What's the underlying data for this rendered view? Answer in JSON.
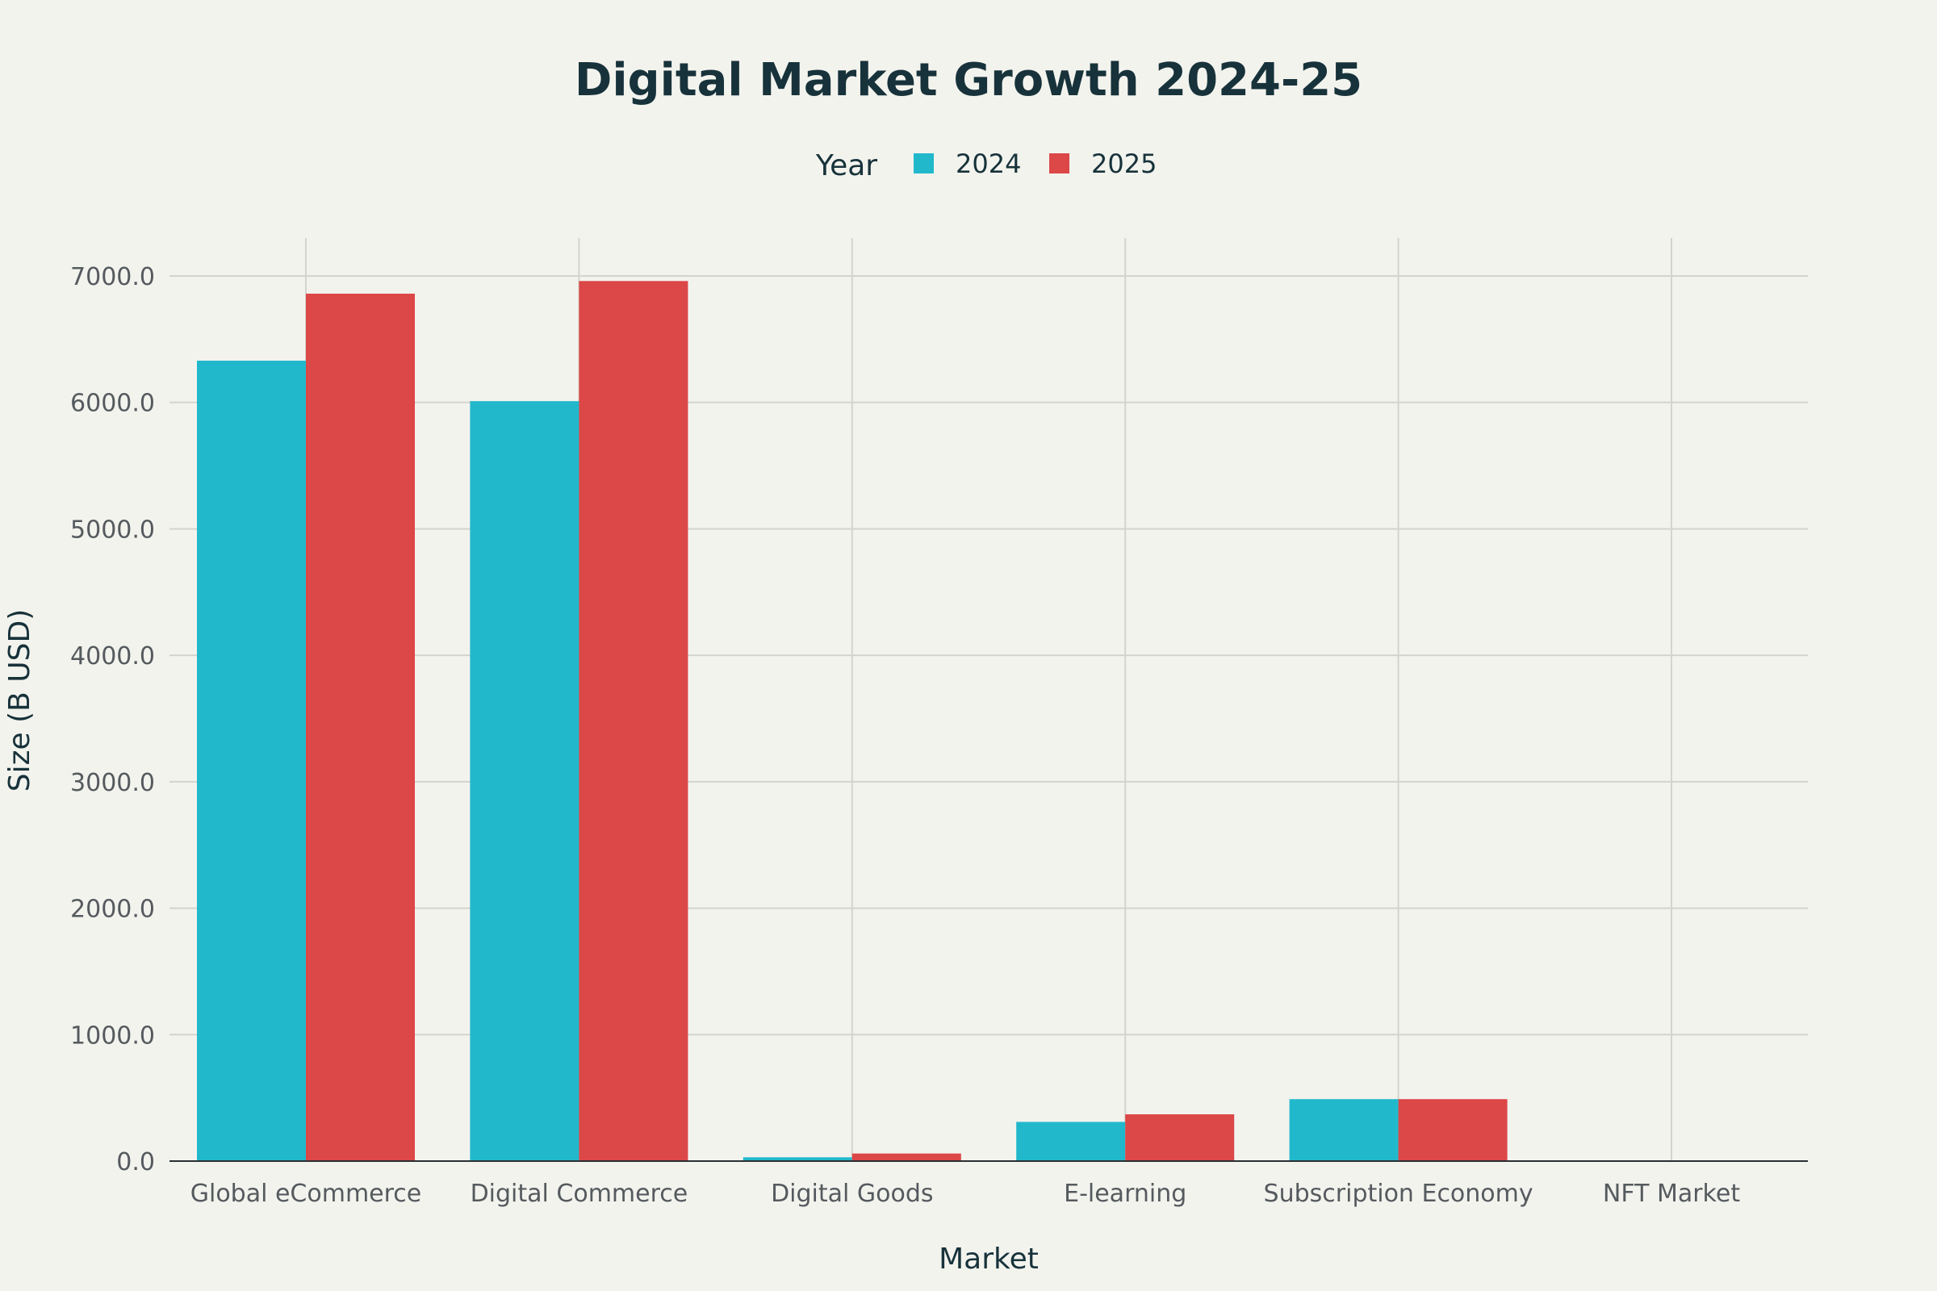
{
  "chart_data": {
    "type": "bar",
    "title": "Digital Market Growth 2024-25",
    "xlabel": "Market",
    "ylabel": "Size (B USD)",
    "legend_title": "Year",
    "legend_placement": "top-center",
    "grid": true,
    "ylim": [
      0,
      7300
    ],
    "yticks": [
      0,
      1000,
      2000,
      3000,
      4000,
      5000,
      6000,
      7000
    ],
    "ytick_labels": [
      "0.0",
      "1000.0",
      "2000.0",
      "3000.0",
      "4000.0",
      "5000.0",
      "6000.0",
      "7000.0"
    ],
    "categories": [
      "Global eCommerce",
      "Digital Commerce",
      "Digital Goods",
      "E-learning",
      "Subscription Economy",
      "NFT Market"
    ],
    "series": [
      {
        "name": "2024",
        "color": "#21b8cc",
        "values": [
          6330,
          6010,
          30,
          310,
          490,
          1
        ]
      },
      {
        "name": "2025",
        "color": "#dc4747",
        "values": [
          6860,
          6960,
          60,
          370,
          490,
          1
        ]
      }
    ]
  }
}
